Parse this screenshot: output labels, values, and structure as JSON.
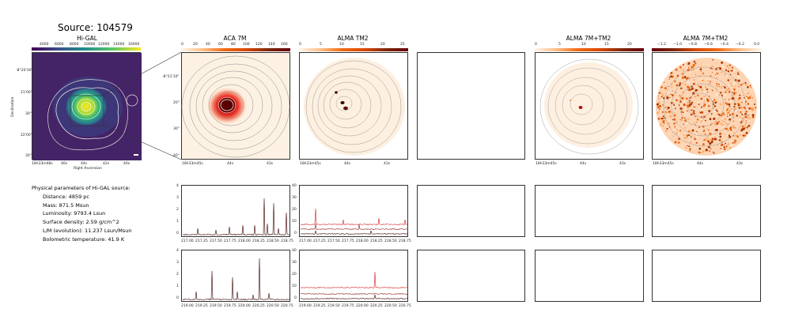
{
  "source_title": "Source: 104579",
  "panels": {
    "higal": {
      "title": "Hi-GAL",
      "cbar_ticks": [
        "4000",
        "6000",
        "8000",
        "10000",
        "12000",
        "14000",
        "16000"
      ],
      "yticks": [
        "-8°20'30\"",
        "21'00\"",
        "30\"",
        "22'00\"",
        "30\""
      ],
      "xticks": [
        "18h33m48s",
        "46s",
        "44s",
        "42s",
        "40s"
      ],
      "xlabel": "Right Ascension",
      "ylabel": "Declination"
    },
    "aca": {
      "title": "ACA 7M",
      "cbar_ticks": [
        "0",
        "20",
        "40",
        "60",
        "80",
        "100",
        "120",
        "140",
        "160"
      ],
      "yticks": [
        "-8°21'10\"",
        "20\"",
        "30\"",
        "40\""
      ],
      "xticks": [
        "18h33m45s",
        "44s",
        "43s"
      ]
    },
    "tm2": {
      "title": "ALMA TM2",
      "cbar_ticks": [
        "0",
        "5",
        "10",
        "15",
        "20",
        "25"
      ],
      "xticks": [
        "18h33m45s",
        "44s",
        "43s"
      ]
    },
    "comb": {
      "title": "ALMA 7M+TM2",
      "cbar_ticks": [
        "0",
        "5",
        "10",
        "15",
        "20"
      ],
      "xticks": [
        "18h33m45s",
        "44s",
        "43s"
      ]
    },
    "comb_resid": {
      "title": "ALMA 7M+TM2",
      "cbar_ticks": [
        "−1.2",
        "−1.0",
        "−0.8",
        "−0.6",
        "−0.4",
        "−0.2",
        "0.0"
      ],
      "xticks": [
        "18h33m45s",
        "44s",
        "43s"
      ]
    }
  },
  "params": {
    "heading": "Physical parameters of Hi-GAL source:",
    "distance": "Distance: 4859 pc",
    "mass": "Mass: 871.5 Msun",
    "luminosity": "Luminosity: 9793.4 Lsun",
    "surface_density": "Surface density: 2.59 g/cm^2",
    "lm": "L/M (evolution): 11.237 Lsun/Msun",
    "tbol": "Bolometric temperature: 41.9 K"
  },
  "spectra": {
    "row1": {
      "xticks": [
        "217.00",
        "217.25",
        "217.50",
        "217.75",
        "218.00",
        "218.25",
        "218.50",
        "218.75"
      ],
      "aca_yticks": [
        "0",
        "1",
        "2",
        "3",
        "4"
      ],
      "tm2_yticks": [
        "0",
        "10",
        "20",
        "30",
        "40"
      ]
    },
    "row2": {
      "xticks": [
        "219.00",
        "219.25",
        "219.50",
        "219.75",
        "220.00",
        "220.25",
        "220.50",
        "220.75"
      ],
      "aca_yticks": [
        "0",
        "1",
        "2",
        "3",
        "4"
      ],
      "tm2_yticks": [
        "0",
        "10",
        "20",
        "30",
        "40"
      ]
    }
  },
  "colors": {
    "viridis_start": "#440154",
    "viridis_end": "#fde725",
    "hot_low": "#fdf0e0",
    "hot_high": "#67000d",
    "spec_dark": "#3a0000",
    "spec_red": "#d62020"
  }
}
